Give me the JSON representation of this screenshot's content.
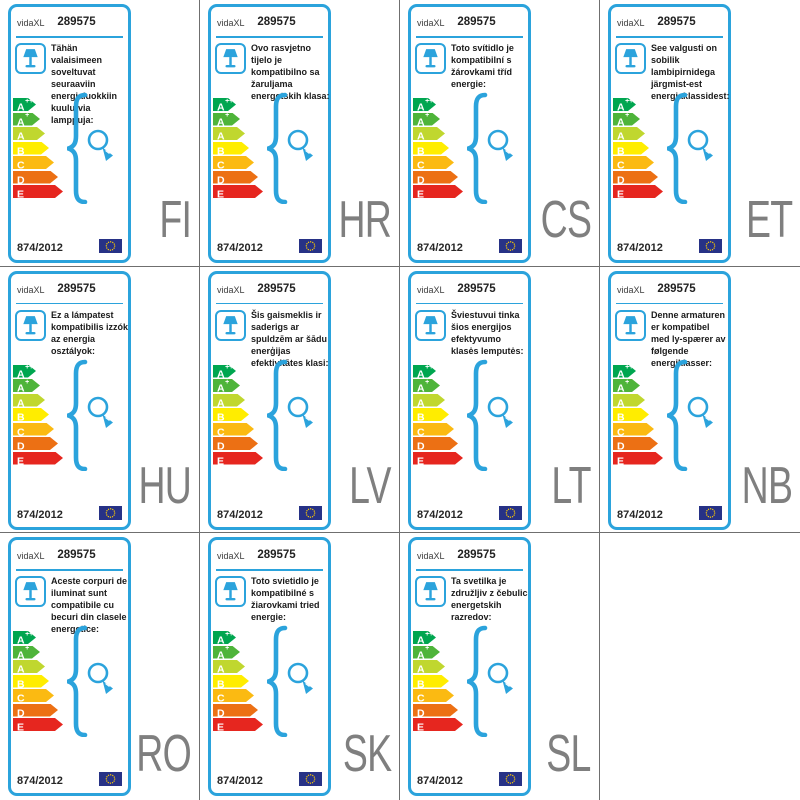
{
  "common": {
    "brand": "vidaXL",
    "model": "289575",
    "regulation": "874/2012",
    "icons": {
      "lamp": "table-lamp-icon",
      "bulb": "light-bulb-icon",
      "brace": "curly-brace-icon",
      "flag": "eu-flag-icon"
    },
    "colors": {
      "accent": "#2ba3dc",
      "grid_line": "#6f6f6f",
      "flag_blue": "#273286",
      "star_yellow": "#ffcc00",
      "code_gray": "#7f7f7f",
      "text_dark": "#1a1a1a"
    },
    "classes": [
      {
        "letter": "A",
        "sup": "++",
        "color": "#00a650"
      },
      {
        "letter": "A",
        "sup": "+",
        "color": "#4eb43a"
      },
      {
        "letter": "A",
        "sup": "",
        "color": "#c0d72f"
      },
      {
        "letter": "B",
        "sup": "",
        "color": "#ffed00"
      },
      {
        "letter": "C",
        "sup": "",
        "color": "#fbba12"
      },
      {
        "letter": "D",
        "sup": "",
        "color": "#ec7014"
      },
      {
        "letter": "E",
        "sup": "",
        "color": "#e6261f"
      }
    ]
  },
  "cards": [
    {
      "code": "FI",
      "text": "Tähän valaisimeen soveltuvat seuraaviin energialuokkiin kuulu-via lamppuja:"
    },
    {
      "code": "HR",
      "text": "Ovo rasvjetno tijelo je kompatibilno sa žaruljama energetskih klasa:"
    },
    {
      "code": "CS",
      "text": "Toto svítidlo je kompatibilní s žárovkami tříd energie:"
    },
    {
      "code": "ET",
      "text": "See valgusti on sobilik lambipirnidega järgmist-est energiaklassidest:"
    },
    {
      "code": "HU",
      "text": "Ez a lámpatest kompatibilis izzók az energia osztályok:"
    },
    {
      "code": "LV",
      "text": "Šis gaismeklis ir saderigs ar spuldzēm ar šādu enerģijas efektivitātes klasi:"
    },
    {
      "code": "LT",
      "text": "Šviestuvui tinka šios energijos efektyvumo klasės lemputės:"
    },
    {
      "code": "NB",
      "text": "Denne armaturen er kompatibel med ly-spærer av følgende energiklasser:"
    },
    {
      "code": "RO",
      "text": "Aceste corpuri de iluminat sunt compatibile cu becuri din clasele energetice:"
    },
    {
      "code": "SK",
      "text": "Toto svietidlo je kompatibilné s žiarovkami tried energie:"
    },
    {
      "code": "SL",
      "text": "Ta svetilka je združljiv z čebulic energetskih razredov:"
    }
  ]
}
